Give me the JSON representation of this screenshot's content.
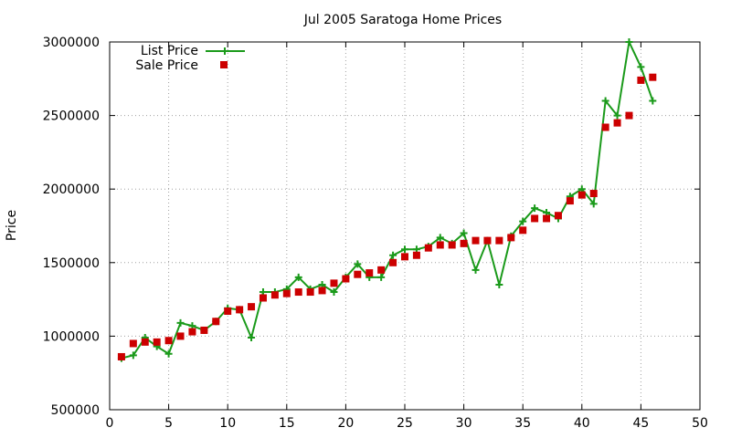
{
  "chart_data": {
    "type": "line",
    "title": "Jul 2005 Saratoga Home Prices",
    "xlabel": "",
    "ylabel": "Price",
    "xlim": [
      0,
      50
    ],
    "ylim": [
      500000,
      3000000
    ],
    "xticks": [
      0,
      5,
      10,
      15,
      20,
      25,
      30,
      35,
      40,
      45,
      50
    ],
    "yticks": [
      500000,
      1000000,
      1500000,
      2000000,
      2500000,
      3000000
    ],
    "grid": true,
    "legend_position": "top-left",
    "series": [
      {
        "name": "List Price",
        "style": "line-with-plus-markers",
        "color": "#1a9a1a",
        "x": [
          1,
          2,
          3,
          4,
          5,
          6,
          7,
          8,
          9,
          10,
          11,
          12,
          13,
          14,
          15,
          16,
          17,
          18,
          19,
          20,
          21,
          22,
          23,
          24,
          25,
          26,
          27,
          28,
          29,
          30,
          31,
          32,
          33,
          34,
          35,
          36,
          37,
          38,
          39,
          40,
          41,
          42,
          43,
          44,
          45,
          46
        ],
        "y": [
          850000,
          870000,
          990000,
          930000,
          880000,
          1090000,
          1070000,
          1040000,
          1100000,
          1190000,
          1180000,
          990000,
          1300000,
          1300000,
          1320000,
          1400000,
          1320000,
          1350000,
          1300000,
          1400000,
          1490000,
          1400000,
          1400000,
          1550000,
          1590000,
          1590000,
          1610000,
          1670000,
          1630000,
          1700000,
          1450000,
          1650000,
          1350000,
          1680000,
          1780000,
          1870000,
          1840000,
          1800000,
          1950000,
          2000000,
          1900000,
          2600000,
          2500000,
          3000000,
          2830000,
          2600000
        ]
      },
      {
        "name": "Sale Price",
        "style": "square-markers",
        "color": "#cc0000",
        "x": [
          1,
          2,
          3,
          4,
          5,
          6,
          7,
          8,
          9,
          10,
          11,
          12,
          13,
          14,
          15,
          16,
          17,
          18,
          19,
          20,
          21,
          22,
          23,
          24,
          25,
          26,
          27,
          28,
          29,
          30,
          31,
          32,
          33,
          34,
          35,
          36,
          37,
          38,
          39,
          40,
          41,
          42,
          43,
          44,
          45,
          46
        ],
        "y": [
          860000,
          950000,
          960000,
          960000,
          970000,
          1000000,
          1030000,
          1040000,
          1100000,
          1170000,
          1180000,
          1200000,
          1260000,
          1280000,
          1290000,
          1300000,
          1300000,
          1310000,
          1360000,
          1390000,
          1420000,
          1430000,
          1450000,
          1500000,
          1540000,
          1550000,
          1600000,
          1620000,
          1620000,
          1630000,
          1650000,
          1650000,
          1650000,
          1670000,
          1720000,
          1800000,
          1800000,
          1820000,
          1920000,
          1960000,
          1970000,
          2420000,
          2450000,
          2500000,
          2740000,
          2760000
        ]
      }
    ]
  }
}
